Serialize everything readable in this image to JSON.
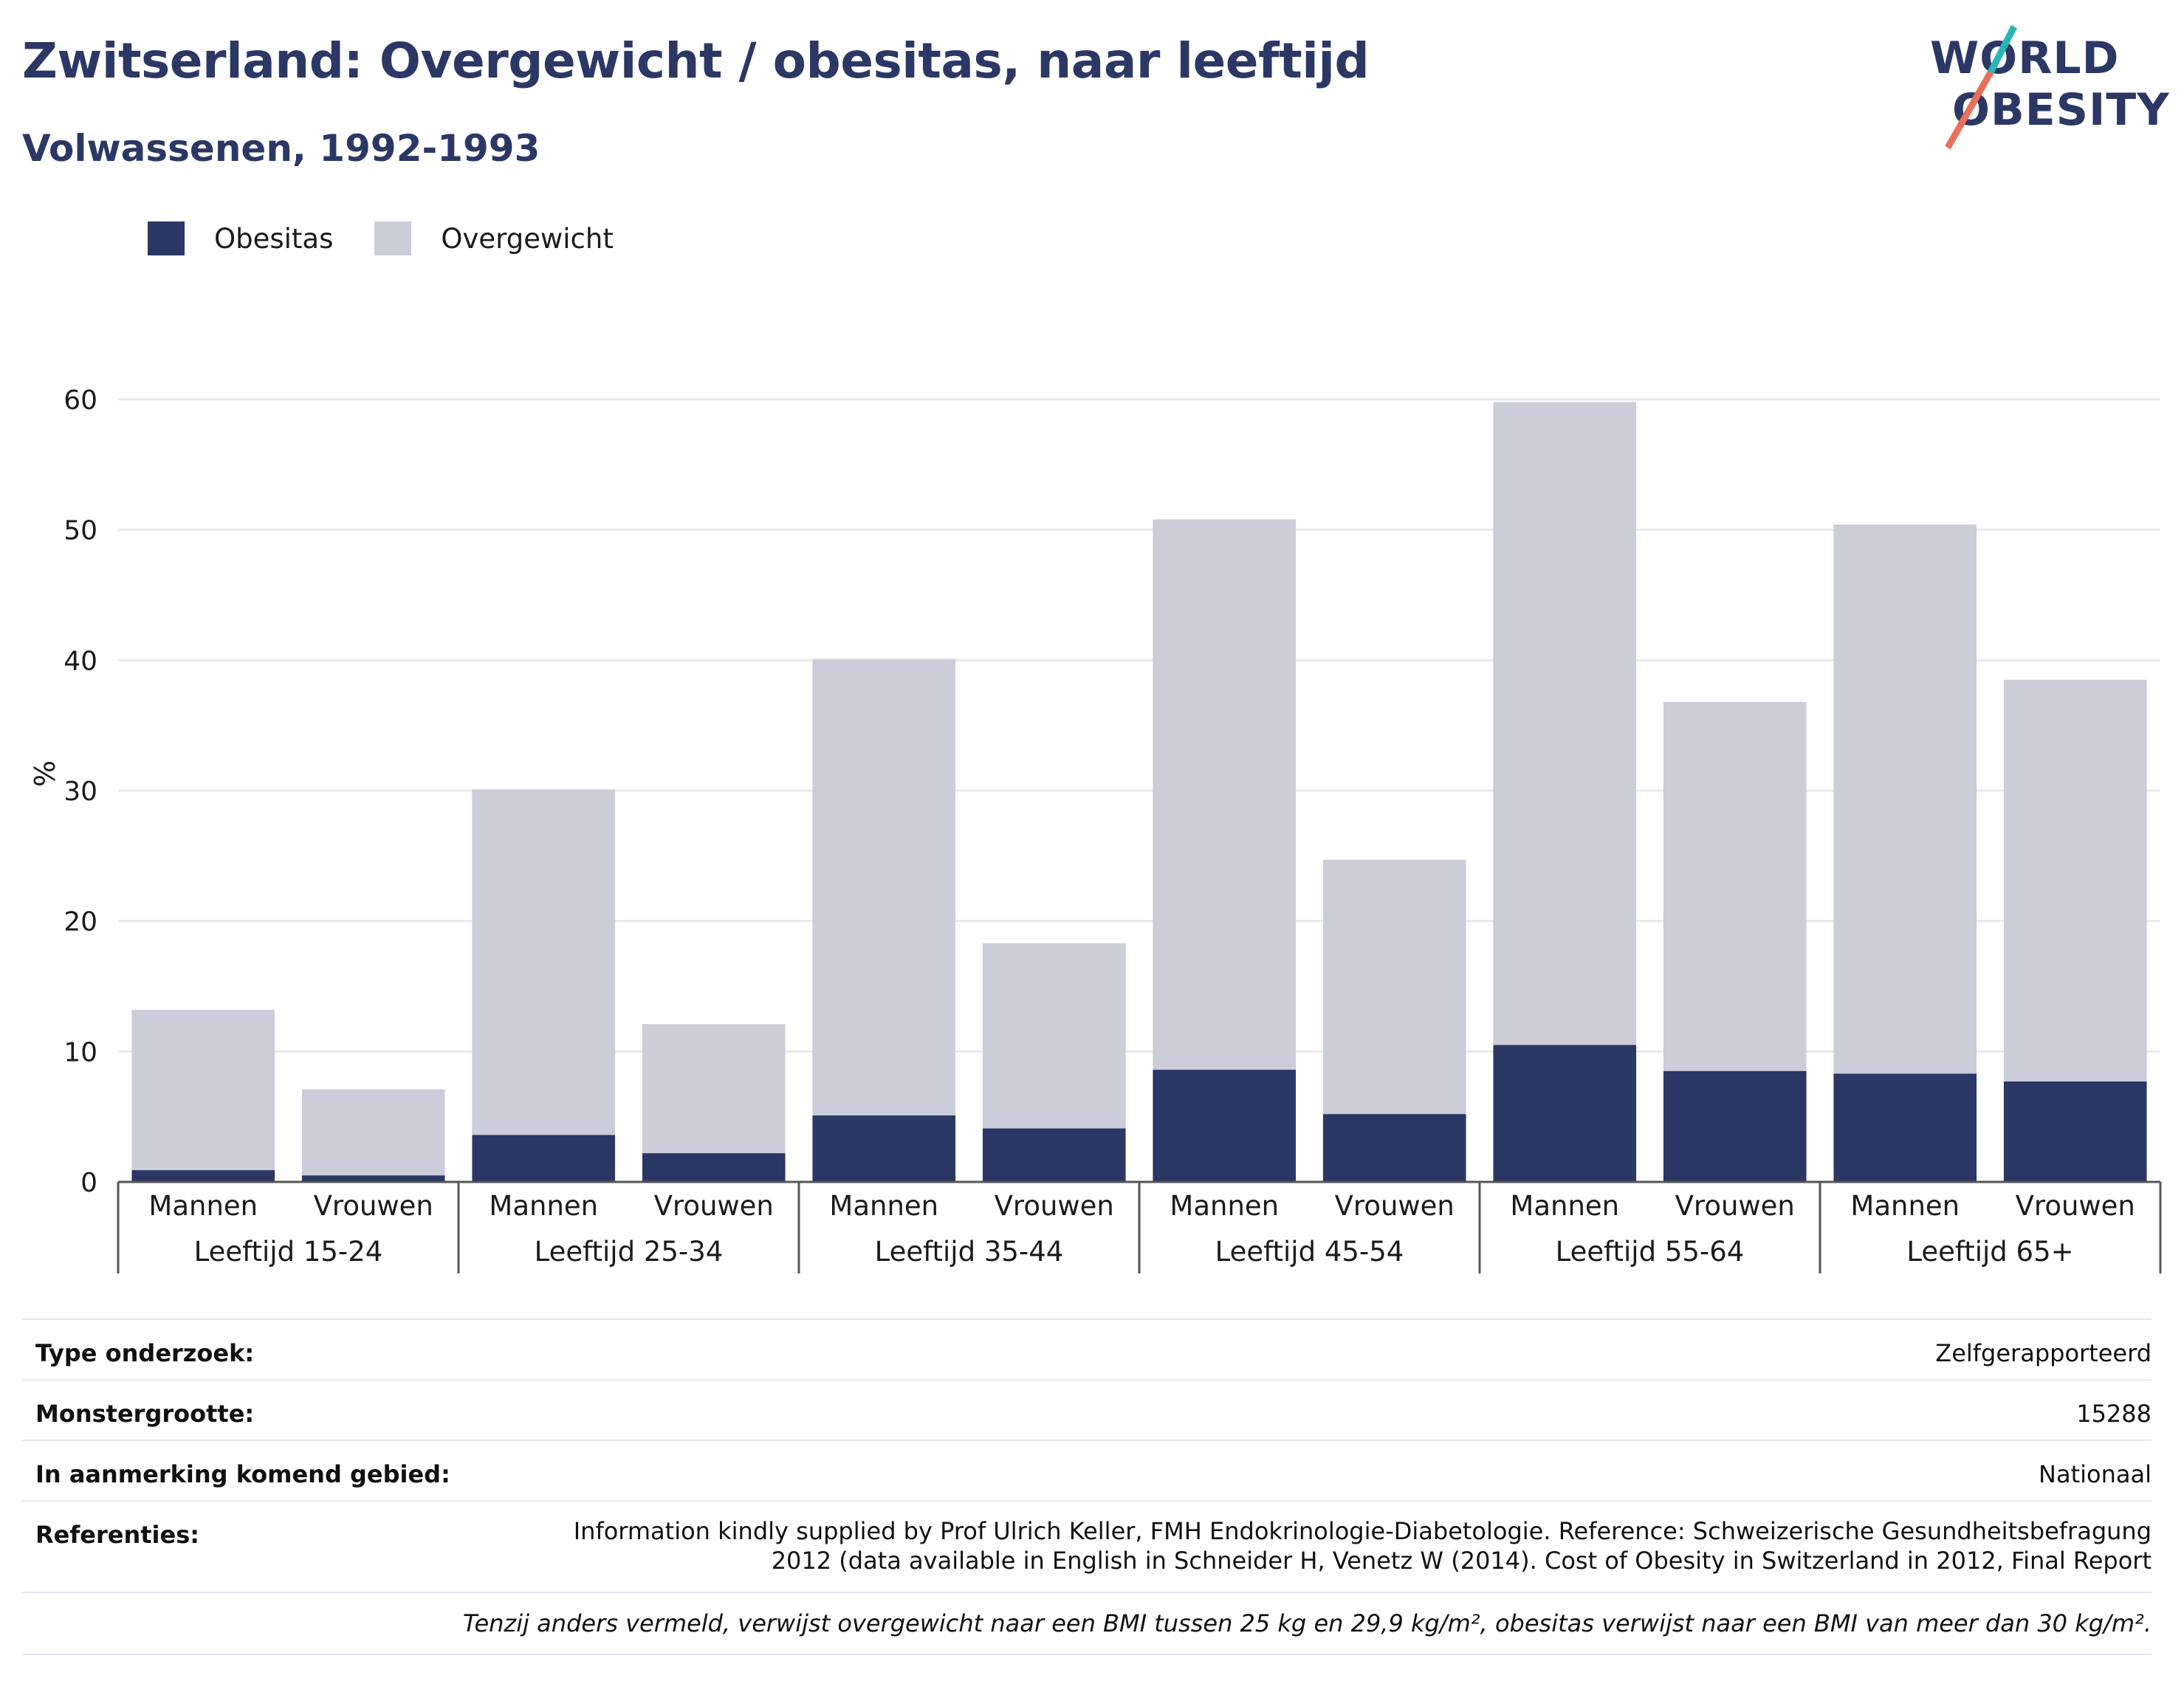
{
  "header": {
    "title": "Zwitserland: Overgewicht / obesitas, naar leeftijd",
    "subtitle": "Volwassenen, 1992-1993"
  },
  "logo": {
    "line1": "WORLD",
    "line2": "OBESITY",
    "colors": {
      "text": "#2b3866",
      "slash_top": "#2bb5b5",
      "slash_bottom": "#e8705a"
    }
  },
  "legend": {
    "items": [
      {
        "label": "Obesitas",
        "color": "#2b3866"
      },
      {
        "label": "Overgewicht",
        "color": "#cbcdd8"
      }
    ]
  },
  "chart_data": {
    "type": "bar",
    "stacked": true,
    "ylabel": "%",
    "ylim": [
      0,
      60
    ],
    "yticks": [
      0,
      10,
      20,
      30,
      40,
      50,
      60
    ],
    "grid": true,
    "legend_position": "top-left",
    "groups": [
      "Leeftijd 15-24",
      "Leeftijd 25-34",
      "Leeftijd 35-44",
      "Leeftijd 45-54",
      "Leeftijd 55-64",
      "Leeftijd 65+"
    ],
    "subcategories": [
      "Mannen",
      "Vrouwen"
    ],
    "categories": [
      "Leeftijd 15-24 Mannen",
      "Leeftijd 15-24 Vrouwen",
      "Leeftijd 25-34 Mannen",
      "Leeftijd 25-34 Vrouwen",
      "Leeftijd 35-44 Mannen",
      "Leeftijd 35-44 Vrouwen",
      "Leeftijd 45-54 Mannen",
      "Leeftijd 45-54 Vrouwen",
      "Leeftijd 55-64 Mannen",
      "Leeftijd 55-64 Vrouwen",
      "Leeftijd 65+ Mannen",
      "Leeftijd 65+ Vrouwen"
    ],
    "series": [
      {
        "name": "Obesitas",
        "color": "#2b3866",
        "values": [
          0.9,
          0.5,
          3.6,
          2.2,
          5.1,
          4.1,
          8.6,
          5.2,
          10.5,
          8.5,
          8.3,
          7.7
        ]
      },
      {
        "name": "Overgewicht",
        "color": "#cbcdd8",
        "values": [
          12.3,
          6.6,
          26.5,
          9.9,
          35.0,
          14.2,
          42.2,
          19.5,
          49.3,
          28.3,
          42.1,
          30.8
        ]
      }
    ]
  },
  "info": {
    "rows": [
      {
        "key": "Type onderzoek:",
        "value": "Zelfgerapporteerd"
      },
      {
        "key": "Monstergrootte:",
        "value": "15288"
      },
      {
        "key": "In aanmerking komend gebied:",
        "value": "Nationaal"
      }
    ],
    "references_key": "Referenties:",
    "references_line1": "Information kindly supplied by Prof Ulrich Keller, FMH Endokrinologie-Diabetologie. Reference: Schweizerische Gesundheitsbefragung",
    "references_line2": "2012 (data available in English in Schneider H, Venetz W (2014). Cost of Obesity in Switzerland in 2012, Final Report",
    "note": "Tenzij anders vermeld, verwijst overgewicht naar een BMI tussen 25 kg en 29,9 kg/m², obesitas verwijst naar een BMI van meer dan 30 kg/m²."
  }
}
